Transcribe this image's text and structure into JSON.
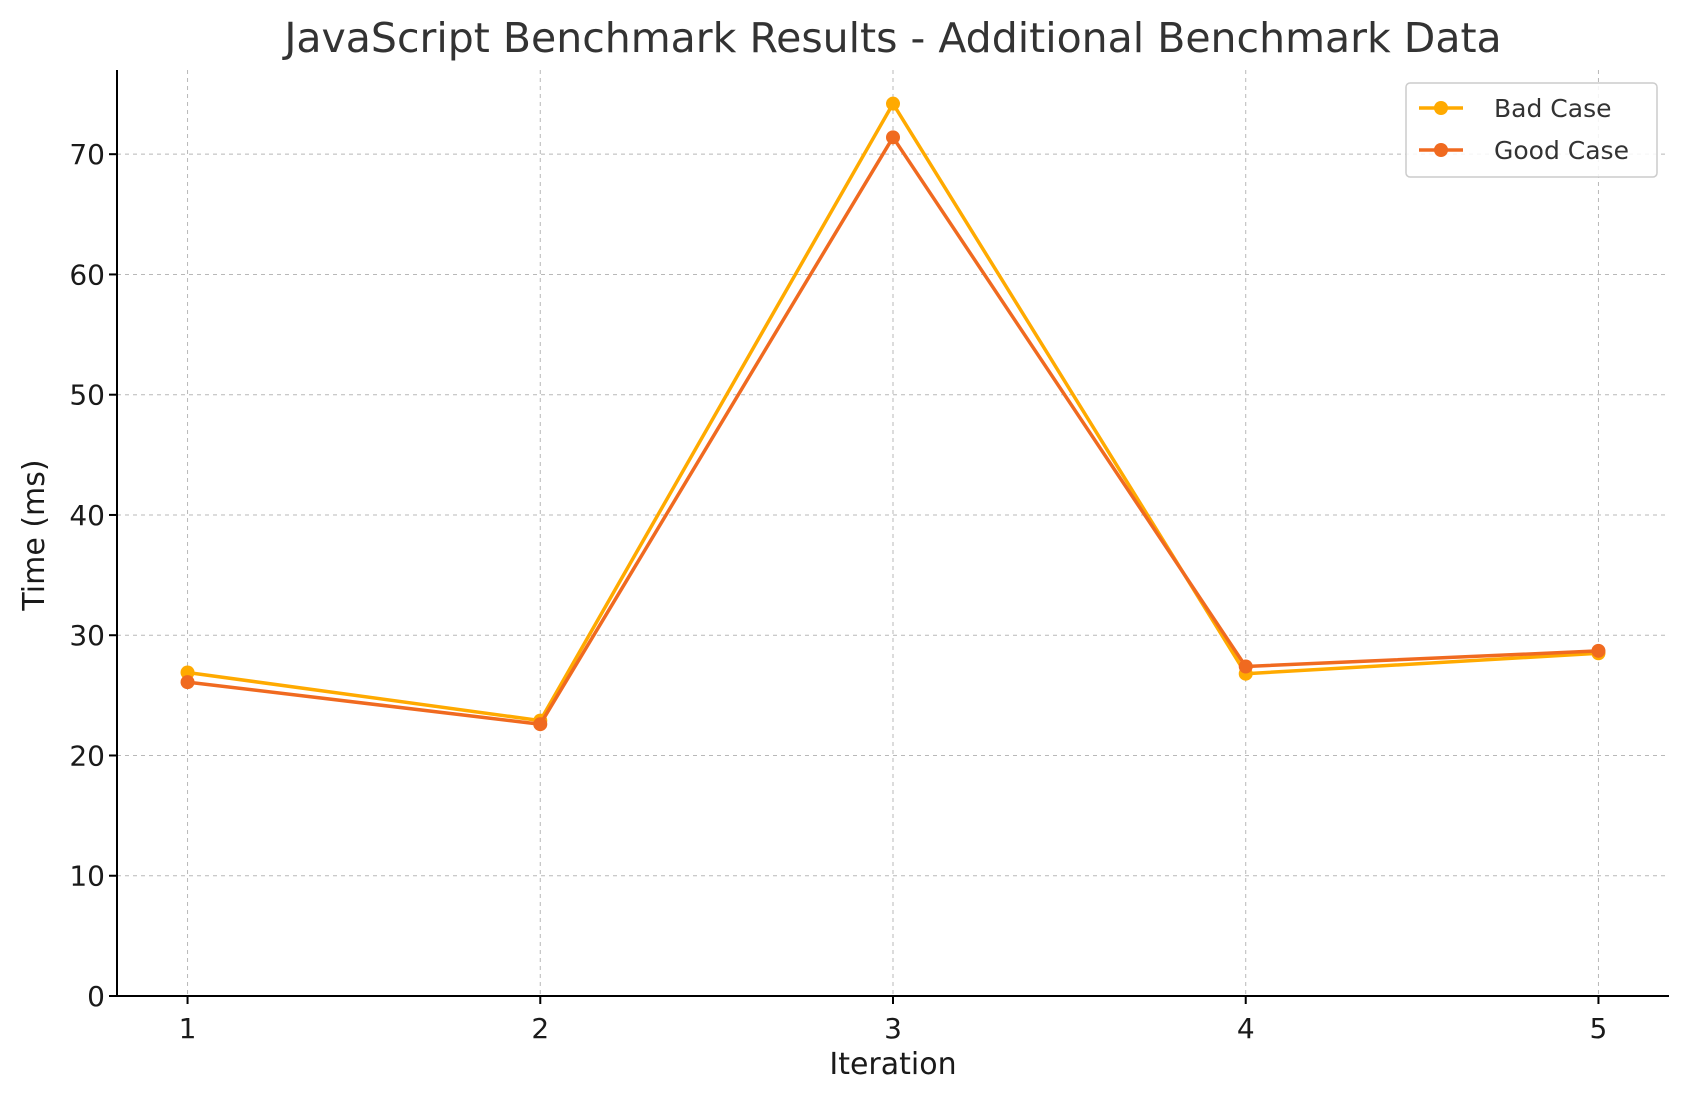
{
  "chart_data": {
    "type": "line",
    "title": "JavaScript Benchmark Results - Additional Benchmark Data",
    "xlabel": "Iteration",
    "ylabel": "Time (ms)",
    "x": [
      1,
      2,
      3,
      4,
      5
    ],
    "x_tick_labels": [
      "1",
      "2",
      "3",
      "4",
      "5"
    ],
    "y_ticks": [
      0,
      10,
      20,
      30,
      40,
      50,
      60,
      70
    ],
    "y_tick_labels": [
      "0",
      "10",
      "20",
      "30",
      "40",
      "50",
      "60",
      "70"
    ],
    "xlim": [
      0.8,
      5.2
    ],
    "ylim": [
      0,
      77
    ],
    "grid": true,
    "legend_position": "top-right",
    "series": [
      {
        "name": "Bad Case",
        "color": "#FFAA00",
        "marker": "circle",
        "values": [
          26.9,
          22.9,
          74.2,
          26.8,
          28.5
        ]
      },
      {
        "name": "Good Case",
        "color": "#F06A20",
        "marker": "circle",
        "values": [
          26.1,
          22.6,
          71.4,
          27.4,
          28.7
        ]
      }
    ]
  }
}
